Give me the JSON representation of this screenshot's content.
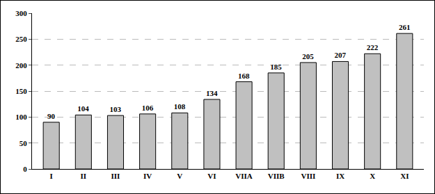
{
  "chart_data": {
    "type": "bar",
    "categories": [
      "I",
      "II",
      "III",
      "IV",
      "V",
      "VI",
      "VIIA",
      "VIIB",
      "VIII",
      "IX",
      "X",
      "XI"
    ],
    "values": [
      90,
      104,
      103,
      106,
      108,
      134,
      168,
      185,
      205,
      207,
      222,
      261
    ],
    "color": "#c0c0c0",
    "ylim": [
      0,
      300
    ],
    "yticks": [
      0,
      50,
      100,
      150,
      200,
      250,
      300
    ],
    "grid": true,
    "data_labels": true
  }
}
